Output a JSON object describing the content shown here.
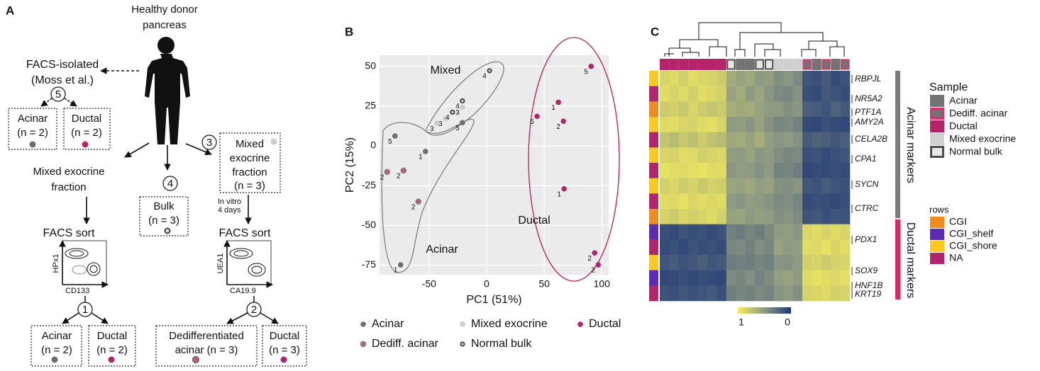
{
  "panel_labels": [
    "A",
    "B",
    "C"
  ],
  "panel_a": {
    "source": [
      "Healthy donor",
      "pancreas"
    ],
    "facs_isolated": [
      "FACS-isolated",
      "(Moss et al.)"
    ],
    "step_numbers": {
      "moss": 5,
      "bulk": 4,
      "mixed": 3,
      "sort_left": 1,
      "sort_right": 2
    },
    "moss_acinar": [
      "Acinar",
      "(n = 2)"
    ],
    "moss_ductal": [
      "Ductal",
      "(n = 2)"
    ],
    "mixed_left": [
      "Mixed exocrine",
      "fraction"
    ],
    "bulk": [
      "Bulk",
      "(n = 3)"
    ],
    "mixed_right": [
      "Mixed",
      "exocrine",
      "fraction",
      "(n = 3)"
    ],
    "culture": [
      "In vitro",
      "4 days"
    ],
    "sort_left": "FACS sort",
    "sort_right": "FACS sort",
    "facs_left_axes": {
      "y": "HPx1",
      "x": "CD133"
    },
    "facs_right_axes": {
      "y": "UEA1",
      "x": "CA19.9"
    },
    "out_left_acinar": [
      "Acinar",
      "(n = 2)"
    ],
    "out_left_ductal": [
      "Ductal",
      "(n = 2)"
    ],
    "out_right_dediff": [
      "Dedifferentiated",
      "acinar (n = 3)"
    ],
    "out_right_ductal": [
      "Ductal",
      "(n = 3)"
    ]
  },
  "chart_data": [
    {
      "type": "scatter",
      "xlabel": "PC1 (51%)",
      "ylabel": "PC2 (15%)",
      "xlim": [
        -93,
        106
      ],
      "ylim": [
        -81,
        57
      ],
      "xticks": [
        -50,
        0,
        50,
        100
      ],
      "yticks": [
        -75,
        -50,
        -25,
        0,
        25,
        50
      ],
      "grid": true,
      "legend": "bottom",
      "series": [
        {
          "name": "Acinar",
          "color": "#6e6e6e",
          "x": [
            -21,
            -79.6,
            -53.1,
            -74.7
          ],
          "values": [
            14.6,
            6.2,
            -3.5,
            -74.8
          ],
          "point_labels": [
            5,
            5,
            1,
            1
          ]
        },
        {
          "name": "Dediff. acinar",
          "color": "#c0577f",
          "x": [
            -86.4,
            -72.2,
            -59.3
          ],
          "values": [
            -16.4,
            -15.5,
            -35
          ],
          "point_labels": [
            2,
            2,
            2
          ]
        },
        {
          "name": "Mixed exocrine",
          "color": "#cccccc",
          "x": [
            -21,
            -35.8,
            -43.2
          ],
          "values": [
            24.3,
            17.3,
            14.2
          ],
          "point_labels": [
            3,
            3,
            3
          ]
        },
        {
          "name": "Normal bulk",
          "color": "#444444",
          "x": [
            2.5,
            -21,
            -29.6
          ],
          "values": [
            47.3,
            28.3,
            21.2
          ],
          "point_labels": [
            4,
            4,
            4
          ]
        },
        {
          "name": "Ductal",
          "color": "#b5236b",
          "x": [
            90.7,
            62.3,
            43.8,
            66.7,
            67.3,
            93.8,
            96.9
          ],
          "values": [
            50,
            27.4,
            18.6,
            15.5,
            -27,
            -67.3,
            -74.8
          ],
          "point_labels": [
            5,
            1,
            5,
            2,
            1,
            2,
            2
          ]
        }
      ],
      "annotations": [
        {
          "text": "Mixed",
          "color": "#808080"
        },
        {
          "text": "Acinar",
          "color": "#808080"
        },
        {
          "text": "Ductal",
          "color": "#c2185b"
        }
      ]
    },
    {
      "type": "heatmap",
      "clim": [
        0,
        1
      ],
      "colorbar_ticks": [
        1,
        0
      ],
      "colors": {
        "high": "#f6ee5d",
        "mid": "#8e9a82",
        "low": "#1f3877"
      },
      "values": [
        [
          0.85,
          0.88,
          0.82,
          0.9,
          0.86,
          0.84,
          0.8,
          0.6,
          0.55,
          0.58,
          0.5,
          0.52,
          0.45,
          0.48,
          0.42,
          0.15,
          0.12,
          0.18,
          0.1,
          0.14
        ],
        [
          0.9,
          0.85,
          0.88,
          0.82,
          0.9,
          0.87,
          0.83,
          0.55,
          0.6,
          0.5,
          0.56,
          0.48,
          0.42,
          0.4,
          0.46,
          0.12,
          0.1,
          0.16,
          0.14,
          0.11
        ],
        [
          0.8,
          0.82,
          0.78,
          0.85,
          0.8,
          0.76,
          0.79,
          0.62,
          0.58,
          0.6,
          0.55,
          0.5,
          0.5,
          0.45,
          0.48,
          0.2,
          0.18,
          0.15,
          0.22,
          0.17
        ],
        [
          0.88,
          0.9,
          0.86,
          0.84,
          0.89,
          0.91,
          0.85,
          0.5,
          0.52,
          0.48,
          0.55,
          0.46,
          0.4,
          0.42,
          0.38,
          0.1,
          0.08,
          0.12,
          0.1,
          0.09
        ],
        [
          0.75,
          0.7,
          0.78,
          0.72,
          0.8,
          0.74,
          0.7,
          0.58,
          0.6,
          0.55,
          0.62,
          0.52,
          0.48,
          0.5,
          0.46,
          0.18,
          0.22,
          0.2,
          0.16,
          0.2
        ],
        [
          0.86,
          0.84,
          0.9,
          0.88,
          0.82,
          0.85,
          0.87,
          0.52,
          0.5,
          0.55,
          0.48,
          0.5,
          0.44,
          0.4,
          0.42,
          0.12,
          0.14,
          0.1,
          0.13,
          0.15
        ],
        [
          0.92,
          0.9,
          0.88,
          0.91,
          0.93,
          0.89,
          0.9,
          0.48,
          0.52,
          0.5,
          0.46,
          0.5,
          0.38,
          0.4,
          0.36,
          0.08,
          0.1,
          0.09,
          0.12,
          0.1
        ],
        [
          0.82,
          0.86,
          0.8,
          0.84,
          0.78,
          0.83,
          0.81,
          0.56,
          0.54,
          0.58,
          0.52,
          0.55,
          0.46,
          0.44,
          0.48,
          0.16,
          0.14,
          0.18,
          0.15,
          0.13
        ],
        [
          0.9,
          0.88,
          0.92,
          0.86,
          0.9,
          0.87,
          0.89,
          0.5,
          0.48,
          0.52,
          0.5,
          0.47,
          0.42,
          0.44,
          0.4,
          0.1,
          0.12,
          0.11,
          0.09,
          0.12
        ],
        [
          0.84,
          0.8,
          0.86,
          0.82,
          0.85,
          0.88,
          0.83,
          0.54,
          0.56,
          0.5,
          0.53,
          0.51,
          0.45,
          0.47,
          0.43,
          0.14,
          0.16,
          0.12,
          0.15,
          0.14
        ],
        [
          0.12,
          0.1,
          0.15,
          0.11,
          0.13,
          0.1,
          0.14,
          0.38,
          0.35,
          0.4,
          0.36,
          0.42,
          0.5,
          0.52,
          0.48,
          0.86,
          0.9,
          0.84,
          0.88,
          0.85
        ],
        [
          0.1,
          0.12,
          0.09,
          0.14,
          0.11,
          0.13,
          0.1,
          0.4,
          0.42,
          0.38,
          0.44,
          0.4,
          0.55,
          0.5,
          0.52,
          0.9,
          0.88,
          0.92,
          0.86,
          0.9
        ],
        [
          0.15,
          0.18,
          0.14,
          0.16,
          0.2,
          0.15,
          0.17,
          0.35,
          0.38,
          0.36,
          0.4,
          0.37,
          0.48,
          0.46,
          0.5,
          0.82,
          0.85,
          0.8,
          0.84,
          0.86
        ],
        [
          0.08,
          0.1,
          0.12,
          0.09,
          0.11,
          0.1,
          0.08,
          0.42,
          0.4,
          0.45,
          0.38,
          0.43,
          0.52,
          0.55,
          0.5,
          0.88,
          0.92,
          0.9,
          0.87,
          0.91
        ],
        [
          0.14,
          0.12,
          0.16,
          0.13,
          0.15,
          0.17,
          0.12,
          0.36,
          0.4,
          0.38,
          0.42,
          0.39,
          0.47,
          0.5,
          0.45,
          0.84,
          0.86,
          0.88,
          0.83,
          0.85
        ]
      ],
      "column_annotation": [
        "Ductal",
        "Ductal",
        "Ductal",
        "Ductal",
        "Ductal",
        "Ductal",
        "Ductal",
        "Normal bulk",
        "Acinar",
        "Acinar",
        "Normal bulk",
        "Normal bulk",
        "Mixed exocrine",
        "Mixed exocrine",
        "Mixed exocrine",
        "Dediff. acinar",
        "Acinar",
        "Dediff. acinar",
        "Acinar",
        "Dediff. acinar"
      ],
      "row_annotation": [
        "CGI_shore",
        "NA",
        "CGI",
        "CGI_shore",
        "NA",
        "CGI_shore",
        "NA",
        "CGI_shore",
        "NA",
        "CGI",
        "CGI_shelf",
        "NA",
        "CGI_shore",
        "CGI_shelf",
        "NA"
      ],
      "sample_legend": {
        "title": "Sample",
        "entries": [
          {
            "name": "Acinar",
            "color": "#737373"
          },
          {
            "name": "Dediff. acinar",
            "color": "#737373",
            "border": "#d8326e"
          },
          {
            "name": "Ductal",
            "color": "#b5236b"
          },
          {
            "name": "Mixed exocrine",
            "color": "#d0d0d0"
          },
          {
            "name": "Normal bulk",
            "color": "#e6e6e6",
            "border": "#4d4d4d"
          }
        ]
      },
      "row_legend": {
        "title": "rows",
        "entries": [
          {
            "name": "CGI",
            "color": "#f28a1c"
          },
          {
            "name": "CGI_shelf",
            "color": "#5b2bb5"
          },
          {
            "name": "CGI_shore",
            "color": "#ffc81a"
          },
          {
            "name": "NA",
            "color": "#b5236b"
          }
        ]
      },
      "genes": [
        "RBPJL",
        "NR5A2",
        "PTF1A",
        "AMY2A",
        "CELA2B",
        "CPA1",
        "SYCN",
        "CTRC",
        "PDX1",
        "SOX9",
        "HNF1B",
        "KRT19"
      ],
      "marker_groups": [
        {
          "name": "Acinar markers",
          "color": "#7a7a7a"
        },
        {
          "name": "Ductal markers",
          "color": "#e0245e"
        }
      ]
    }
  ]
}
